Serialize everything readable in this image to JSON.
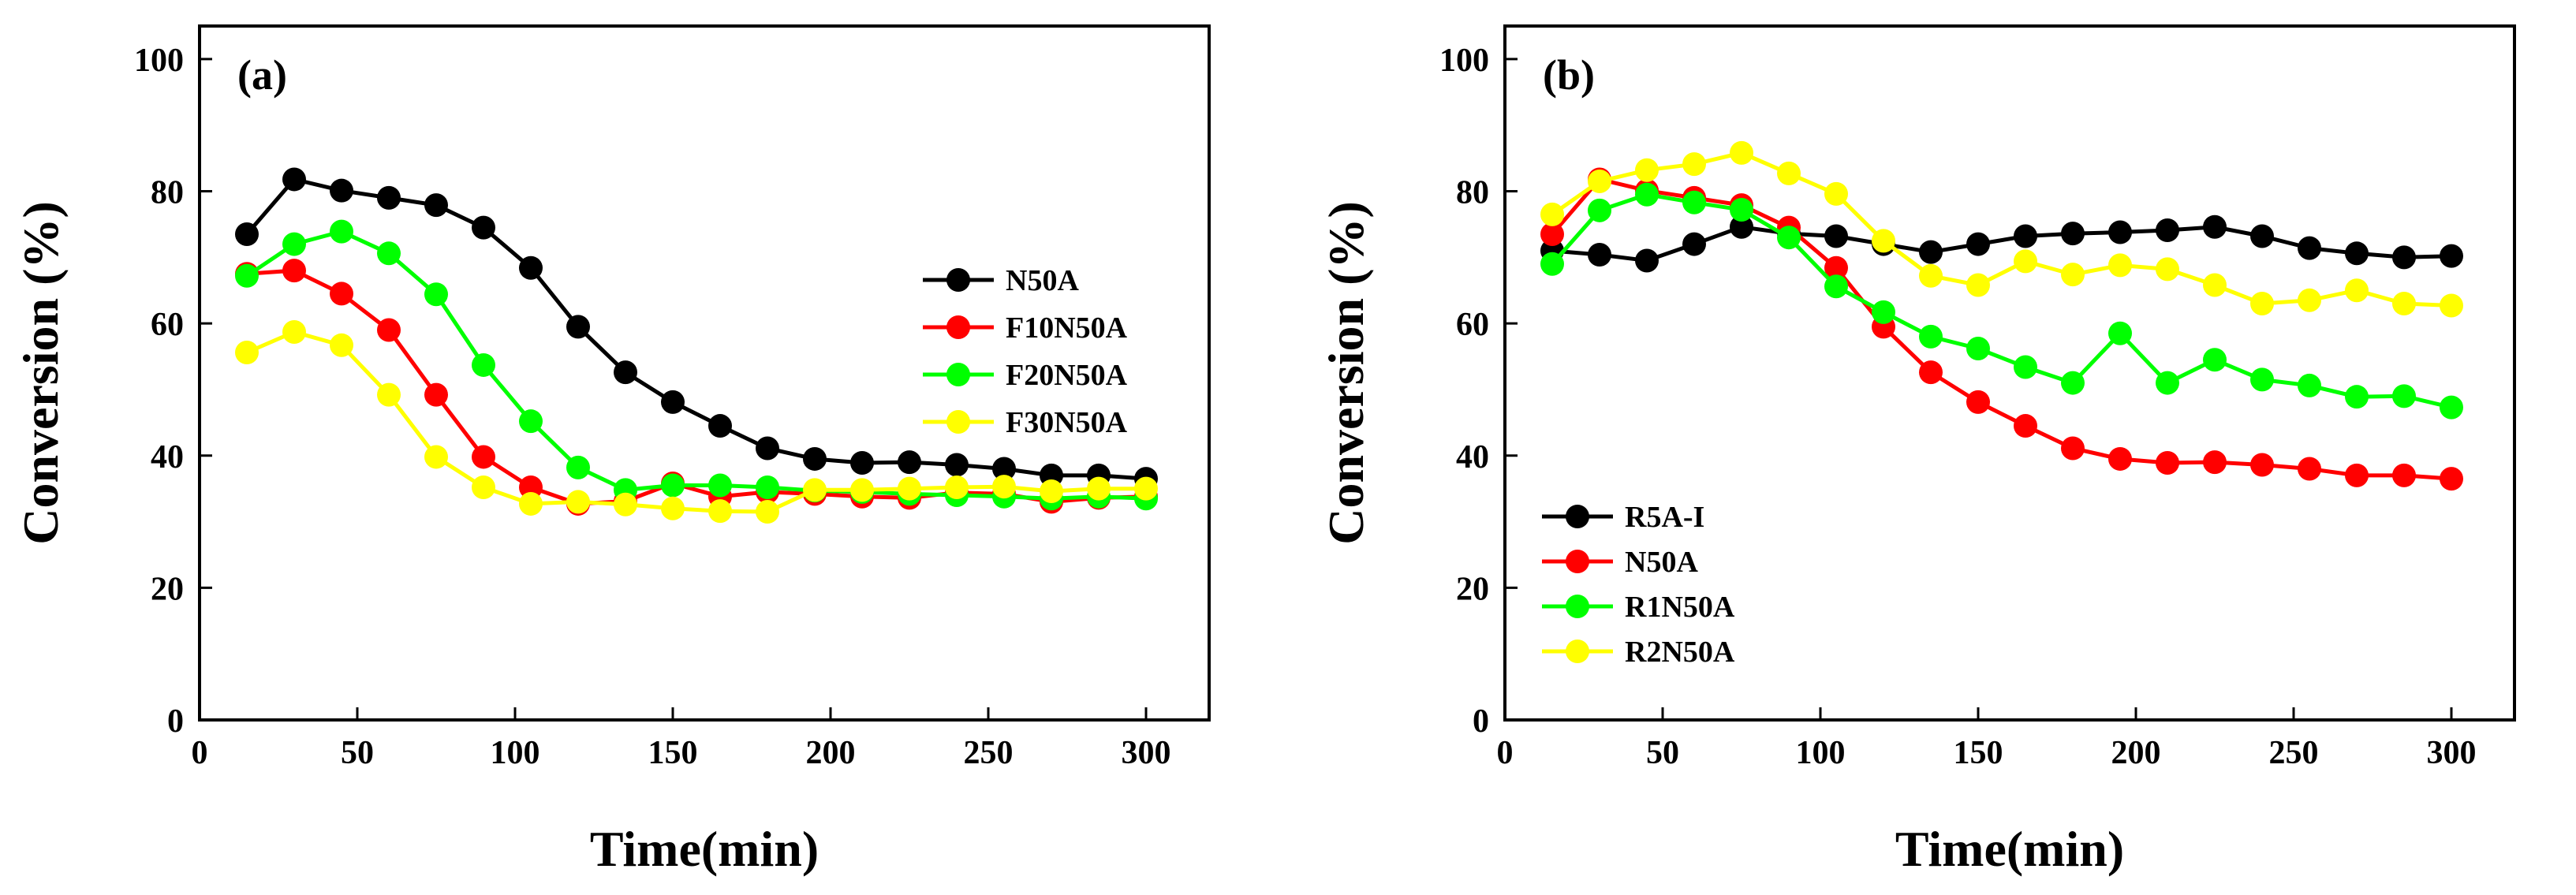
{
  "chart_data": [
    {
      "type": "line",
      "panel_label": "(a)",
      "xlabel": "Time(min)",
      "ylabel": "Conversion (%)",
      "xlim": [
        0,
        320
      ],
      "ylim": [
        0,
        105
      ],
      "xticks": [
        0,
        50,
        100,
        150,
        200,
        250,
        300
      ],
      "yticks": [
        0,
        20,
        40,
        60,
        80,
        100
      ],
      "grid": false,
      "legend_position": "right",
      "x": [
        15,
        30,
        45,
        60,
        75,
        90,
        105,
        120,
        135,
        150,
        165,
        180,
        195,
        210,
        225,
        240,
        255,
        270,
        285,
        300
      ],
      "series": [
        {
          "name": "N50A",
          "color": "#000000",
          "values": [
            73.5,
            81.8,
            80.1,
            79.0,
            77.9,
            74.5,
            68.4,
            59.5,
            52.6,
            48.1,
            44.5,
            41.1,
            39.5,
            38.9,
            39.0,
            38.6,
            38.0,
            37.0,
            37.0,
            36.5
          ]
        },
        {
          "name": "F10N50A",
          "color": "#ff0000",
          "values": [
            67.5,
            68.0,
            64.5,
            59.0,
            49.2,
            39.8,
            35.2,
            32.7,
            33.1,
            35.8,
            33.8,
            34.5,
            34.2,
            33.8,
            33.6,
            34.4,
            34.2,
            33.0,
            33.6,
            33.8
          ]
        },
        {
          "name": "F20N50A",
          "color": "#00ff00",
          "values": [
            67.2,
            72.0,
            73.9,
            70.6,
            64.4,
            53.7,
            45.2,
            38.2,
            34.8,
            35.5,
            35.5,
            35.2,
            34.7,
            34.5,
            34.2,
            34.0,
            33.8,
            33.5,
            33.8,
            33.5
          ]
        },
        {
          "name": "F30N50A",
          "color": "#ffff00",
          "values": [
            55.6,
            58.7,
            56.7,
            49.2,
            39.8,
            35.2,
            32.7,
            33.0,
            32.6,
            32.0,
            31.6,
            31.5,
            34.8,
            34.8,
            35.0,
            35.2,
            35.3,
            34.6,
            35.0,
            35.0
          ]
        }
      ]
    },
    {
      "type": "line",
      "panel_label": "(b)",
      "xlabel": "Time(min)",
      "ylabel": "Conversion (%)",
      "xlim": [
        0,
        320
      ],
      "ylim": [
        0,
        105
      ],
      "xticks": [
        0,
        50,
        100,
        150,
        200,
        250,
        300
      ],
      "yticks": [
        0,
        20,
        40,
        60,
        80,
        100
      ],
      "grid": false,
      "legend_position": "bottom-left",
      "x": [
        15,
        30,
        45,
        60,
        75,
        90,
        105,
        120,
        135,
        150,
        165,
        180,
        195,
        210,
        225,
        240,
        255,
        270,
        285,
        300
      ],
      "series": [
        {
          "name": "R5A-I",
          "color": "#000000",
          "values": [
            71.0,
            70.4,
            69.5,
            72.0,
            74.6,
            73.6,
            73.2,
            72.0,
            70.8,
            72.0,
            73.2,
            73.6,
            73.8,
            74.1,
            74.6,
            73.2,
            71.4,
            70.6,
            70.0,
            70.2
          ]
        },
        {
          "name": "N50A",
          "color": "#ff0000",
          "values": [
            73.5,
            81.8,
            80.1,
            79.0,
            77.9,
            74.5,
            68.4,
            59.5,
            52.6,
            48.1,
            44.5,
            41.1,
            39.5,
            38.9,
            39.0,
            38.6,
            38.0,
            37.0,
            37.0,
            36.5
          ]
        },
        {
          "name": "R1N50A",
          "color": "#00ff00",
          "values": [
            69.0,
            77.1,
            79.5,
            78.3,
            77.2,
            73.0,
            65.6,
            61.7,
            58.0,
            56.2,
            53.4,
            51.0,
            58.5,
            51.0,
            54.5,
            51.5,
            50.6,
            48.9,
            49.0,
            47.3
          ]
        },
        {
          "name": "R2N50A",
          "color": "#ffff00",
          "values": [
            76.5,
            81.5,
            83.2,
            84.1,
            85.8,
            82.7,
            79.6,
            72.5,
            67.2,
            65.8,
            69.4,
            67.4,
            68.8,
            68.2,
            65.8,
            63.0,
            63.5,
            65.0,
            63.0,
            62.7
          ]
        }
      ]
    }
  ]
}
